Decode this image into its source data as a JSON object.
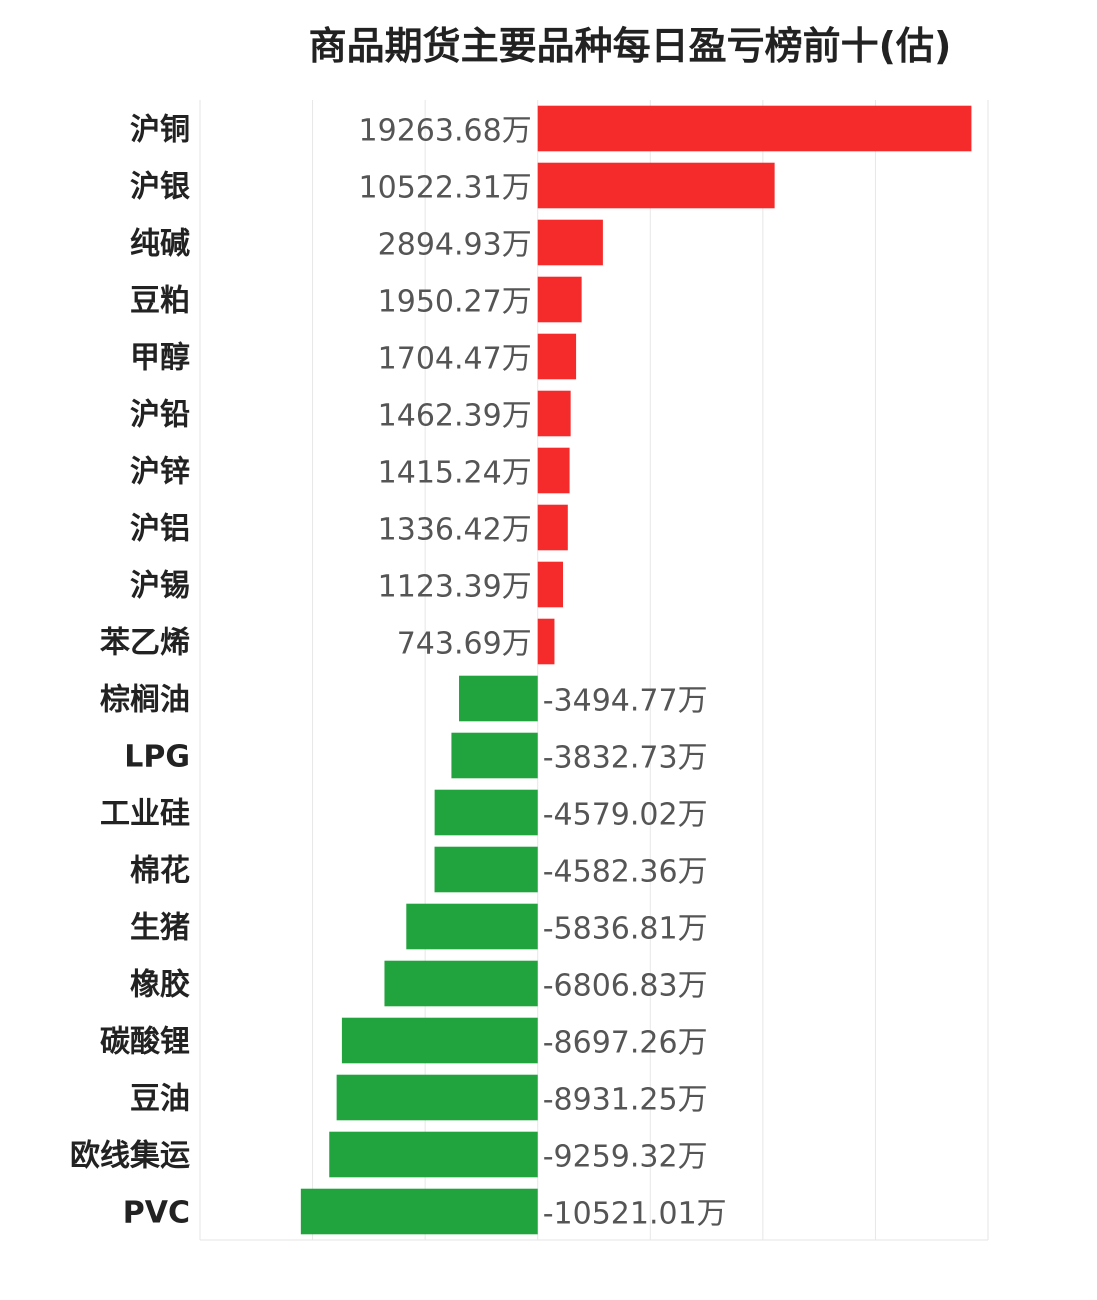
{
  "chart_data": {
    "type": "bar",
    "orientation": "horizontal",
    "title": "商品期货主要品种每日盈亏榜前十(估)",
    "unit_suffix": "万",
    "categories": [
      "沪铜",
      "沪银",
      "纯碱",
      "豆粕",
      "甲醇",
      "沪铅",
      "沪锌",
      "沪铝",
      "沪锡",
      "苯乙烯",
      "棕榈油",
      "LPG",
      "工业硅",
      "棉花",
      "生猪",
      "橡胶",
      "碳酸锂",
      "豆油",
      "欧线集运",
      "PVC"
    ],
    "values": [
      19263.68,
      10522.31,
      2894.93,
      1950.27,
      1704.47,
      1462.39,
      1415.24,
      1336.42,
      1123.39,
      743.69,
      -3494.77,
      -3832.73,
      -4579.02,
      -4582.36,
      -5836.81,
      -6806.83,
      -8697.26,
      -8931.25,
      -9259.32,
      -10521.01
    ],
    "labels": [
      "19263.68万",
      "10522.31万",
      "2894.93万",
      "1950.27万",
      "1704.47万",
      "1462.39万",
      "1415.24万",
      "1336.42万",
      "1123.39万",
      "743.69万",
      "-3494.77万",
      "-3832.73万",
      "-4579.02万",
      "-4582.36万",
      "-5836.81万",
      "-6806.83万",
      "-8697.26万",
      "-8931.25万",
      "-9259.32万",
      "-10521.01万"
    ],
    "xlim": [
      -15000,
      20000
    ],
    "grid": true,
    "colors": {
      "positive": "#f52a2a",
      "negative": "#21a33d",
      "grid": "#e6e6e6",
      "label": "#555555",
      "category": "#222222"
    }
  }
}
